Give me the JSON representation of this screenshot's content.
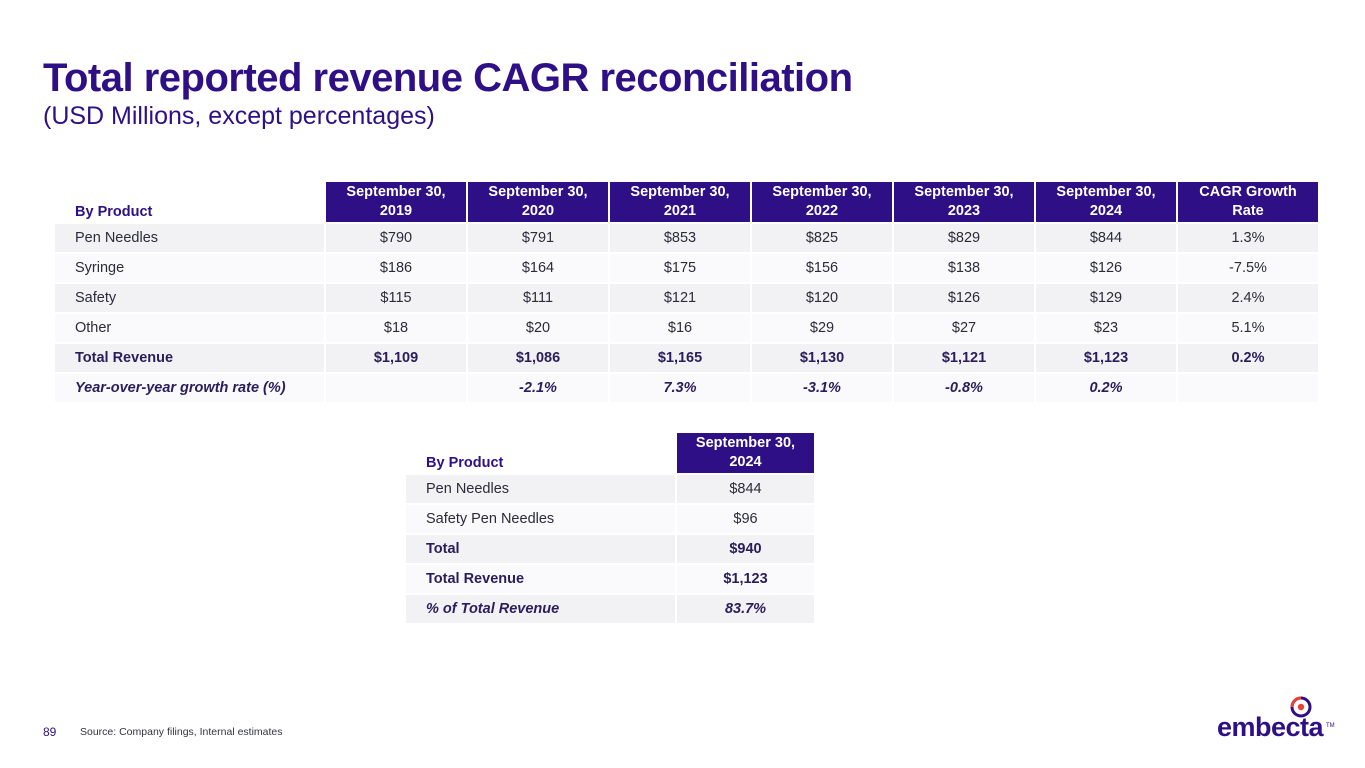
{
  "page": {
    "title": "Total reported revenue CAGR reconciliation",
    "subtitle": "(USD Millions, except percentages)",
    "page_number": "89",
    "source": "Source: Company filings, Internal estimates",
    "logo_text": "embecta",
    "logo_tm": "TM"
  },
  "colors": {
    "brand": "#2e0f86",
    "logo_accent_red": "#e8413a",
    "row_shade": "#f2f2f4"
  },
  "table1": {
    "row_header": "By Product",
    "columns": [
      "September 30, 2019",
      "September 30, 2020",
      "September 30, 2021",
      "September 30, 2022",
      "September 30, 2023",
      "September 30, 2024",
      "CAGR Growth Rate"
    ],
    "rows": [
      {
        "label": "Pen Needles",
        "values": [
          "$790",
          "$791",
          "$853",
          "$825",
          "$829",
          "$844",
          "1.3%"
        ]
      },
      {
        "label": "Syringe",
        "values": [
          "$186",
          "$164",
          "$175",
          "$156",
          "$138",
          "$126",
          "-7.5%"
        ]
      },
      {
        "label": "Safety",
        "values": [
          "$115",
          "$111",
          "$121",
          "$120",
          "$126",
          "$129",
          "2.4%"
        ]
      },
      {
        "label": "Other",
        "values": [
          "$18",
          "$20",
          "$16",
          "$29",
          "$27",
          "$23",
          "5.1%"
        ]
      },
      {
        "label": "Total Revenue",
        "values": [
          "$1,109",
          "$1,086",
          "$1,165",
          "$1,130",
          "$1,121",
          "$1,123",
          "0.2%"
        ]
      },
      {
        "label": "Year-over-year growth rate (%)",
        "values": [
          "",
          "-2.1%",
          "7.3%",
          "-3.1%",
          "-0.8%",
          "0.2%",
          ""
        ]
      }
    ]
  },
  "table2": {
    "row_header": "By Product",
    "columns": [
      "September 30, 2024"
    ],
    "rows": [
      {
        "label": "Pen Needles",
        "values": [
          "$844"
        ]
      },
      {
        "label": "Safety Pen Needles",
        "values": [
          "$96"
        ]
      },
      {
        "label": "Total",
        "values": [
          "$940"
        ]
      },
      {
        "label": "Total Revenue",
        "values": [
          "$1,123"
        ]
      },
      {
        "label": "% of Total Revenue",
        "values": [
          "83.7%"
        ]
      }
    ]
  }
}
